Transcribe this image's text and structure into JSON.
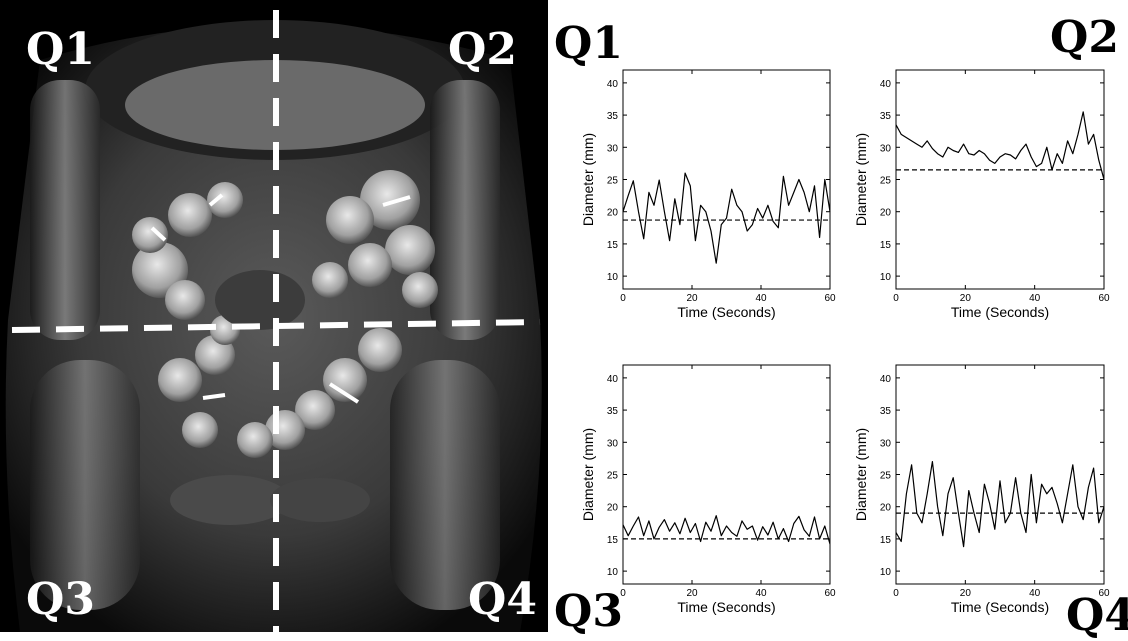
{
  "image_labels": {
    "q1": "Q1",
    "q2": "Q2",
    "q3": "Q3",
    "q4": "Q4"
  },
  "panel_labels": {
    "q1": "Q1",
    "q2": "Q2",
    "q3": "Q3",
    "q4": "Q4"
  },
  "colors": {
    "line": "#000000",
    "background": "#ffffff",
    "mri_background": "#000000",
    "divider": "#ffffff"
  },
  "chart_data": [
    {
      "panel": "Q1",
      "type": "line",
      "xlabel": "Time (Seconds)",
      "ylabel": "Diameter (mm)",
      "xlim": [
        0,
        60
      ],
      "ylim": [
        8,
        42
      ],
      "xticks": [
        0,
        20,
        40,
        60
      ],
      "yticks": [
        10,
        15,
        20,
        25,
        30,
        35,
        40
      ],
      "reference_line": 18.7,
      "x": [
        0,
        1.5,
        3,
        4.5,
        6,
        7.5,
        9,
        10.5,
        12,
        13.5,
        15,
        16.5,
        18,
        19.5,
        21,
        22.5,
        24,
        25.5,
        27,
        28.5,
        30,
        31.5,
        33,
        34.5,
        36,
        37.5,
        39,
        40.5,
        42,
        43.5,
        45,
        46.5,
        48,
        49.5,
        51,
        52.5,
        54,
        55.5,
        57,
        58.5,
        60
      ],
      "y": [
        20,
        22.5,
        24.8,
        20,
        15.8,
        23,
        21,
        24.9,
        20,
        15.5,
        22,
        18,
        26,
        24,
        15.5,
        21,
        20,
        17,
        12,
        18,
        19,
        23.5,
        21,
        20,
        17,
        18,
        20.5,
        19,
        21,
        18.5,
        17.5,
        25.5,
        21,
        23,
        25,
        23,
        20,
        24,
        16,
        25,
        20
      ]
    },
    {
      "panel": "Q2",
      "type": "line",
      "xlabel": "Time (Seconds)",
      "ylabel": "Diameter (mm)",
      "xlim": [
        0,
        60
      ],
      "ylim": [
        8,
        42
      ],
      "xticks": [
        0,
        20,
        40,
        60
      ],
      "yticks": [
        10,
        15,
        20,
        25,
        30,
        35,
        40
      ],
      "reference_line": 26.5,
      "x": [
        0,
        1.5,
        3,
        4.5,
        6,
        7.5,
        9,
        10.5,
        12,
        13.5,
        15,
        16.5,
        18,
        19.5,
        21,
        22.5,
        24,
        25.5,
        27,
        28.5,
        30,
        31.5,
        33,
        34.5,
        36,
        37.5,
        39,
        40.5,
        42,
        43.5,
        45,
        46.5,
        48,
        49.5,
        51,
        52.5,
        54,
        55.5,
        57,
        58.5,
        60
      ],
      "y": [
        33.5,
        32,
        31.5,
        31,
        30.5,
        30,
        31,
        29.8,
        29,
        28.5,
        30,
        29.5,
        29.2,
        30.5,
        29,
        28.8,
        29.5,
        29,
        28,
        27.5,
        28.5,
        29,
        28.8,
        28.2,
        29.5,
        30.5,
        28.5,
        27,
        27.5,
        30,
        26.5,
        29,
        27.5,
        31,
        29,
        32,
        35.5,
        30.5,
        32,
        28,
        25
      ]
    },
    {
      "panel": "Q3",
      "type": "line",
      "xlabel": "Time (Seconds)",
      "ylabel": "Diameter (mm)",
      "xlim": [
        0,
        60
      ],
      "ylim": [
        8,
        42
      ],
      "xticks": [
        0,
        20,
        40,
        60
      ],
      "yticks": [
        10,
        15,
        20,
        25,
        30,
        35,
        40
      ],
      "reference_line": 15,
      "x": [
        0,
        1.5,
        3,
        4.5,
        6,
        7.5,
        9,
        10.5,
        12,
        13.5,
        15,
        16.5,
        18,
        19.5,
        21,
        22.5,
        24,
        25.5,
        27,
        28.5,
        30,
        31.5,
        33,
        34.5,
        36,
        37.5,
        39,
        40.5,
        42,
        43.5,
        45,
        46.5,
        48,
        49.5,
        51,
        52.5,
        54,
        55.5,
        57,
        58.5,
        60
      ],
      "y": [
        17.2,
        15.5,
        17,
        18.4,
        15.5,
        17.8,
        15,
        16.8,
        18,
        16.2,
        17.5,
        15.8,
        18.2,
        16,
        17.4,
        14.6,
        17.6,
        16.2,
        18.6,
        15.5,
        17,
        16,
        15.4,
        17.8,
        16.5,
        17,
        14.8,
        16.9,
        15.6,
        17.6,
        15,
        16.6,
        14.6,
        17.4,
        18.5,
        16.4,
        15.4,
        18.4,
        15,
        17,
        14.2
      ]
    },
    {
      "panel": "Q4",
      "type": "line",
      "xlabel": "Time (Seconds)",
      "ylabel": "Diameter (mm)",
      "xlim": [
        0,
        60
      ],
      "ylim": [
        8,
        42
      ],
      "xticks": [
        0,
        20,
        40,
        60
      ],
      "yticks": [
        10,
        15,
        20,
        25,
        30,
        35,
        40
      ],
      "reference_line": 19,
      "x": [
        0,
        1.5,
        3,
        4.5,
        6,
        7.5,
        9,
        10.5,
        12,
        13.5,
        15,
        16.5,
        18,
        19.5,
        21,
        22.5,
        24,
        25.5,
        27,
        28.5,
        30,
        31.5,
        33,
        34.5,
        36,
        37.5,
        39,
        40.5,
        42,
        43.5,
        45,
        46.5,
        48,
        49.5,
        51,
        52.5,
        54,
        55.5,
        57,
        58.5,
        60
      ],
      "y": [
        16,
        14.6,
        22,
        26.5,
        19,
        17.5,
        22,
        27,
        20,
        15.5,
        22,
        24.5,
        19,
        13.8,
        22.5,
        19,
        16,
        23.5,
        20.5,
        16.5,
        24,
        17.5,
        19,
        24.5,
        19,
        16,
        25,
        17.5,
        23.5,
        22,
        23,
        20.5,
        17.5,
        22,
        26.5,
        20,
        18,
        23,
        26,
        17.5,
        20
      ]
    }
  ]
}
